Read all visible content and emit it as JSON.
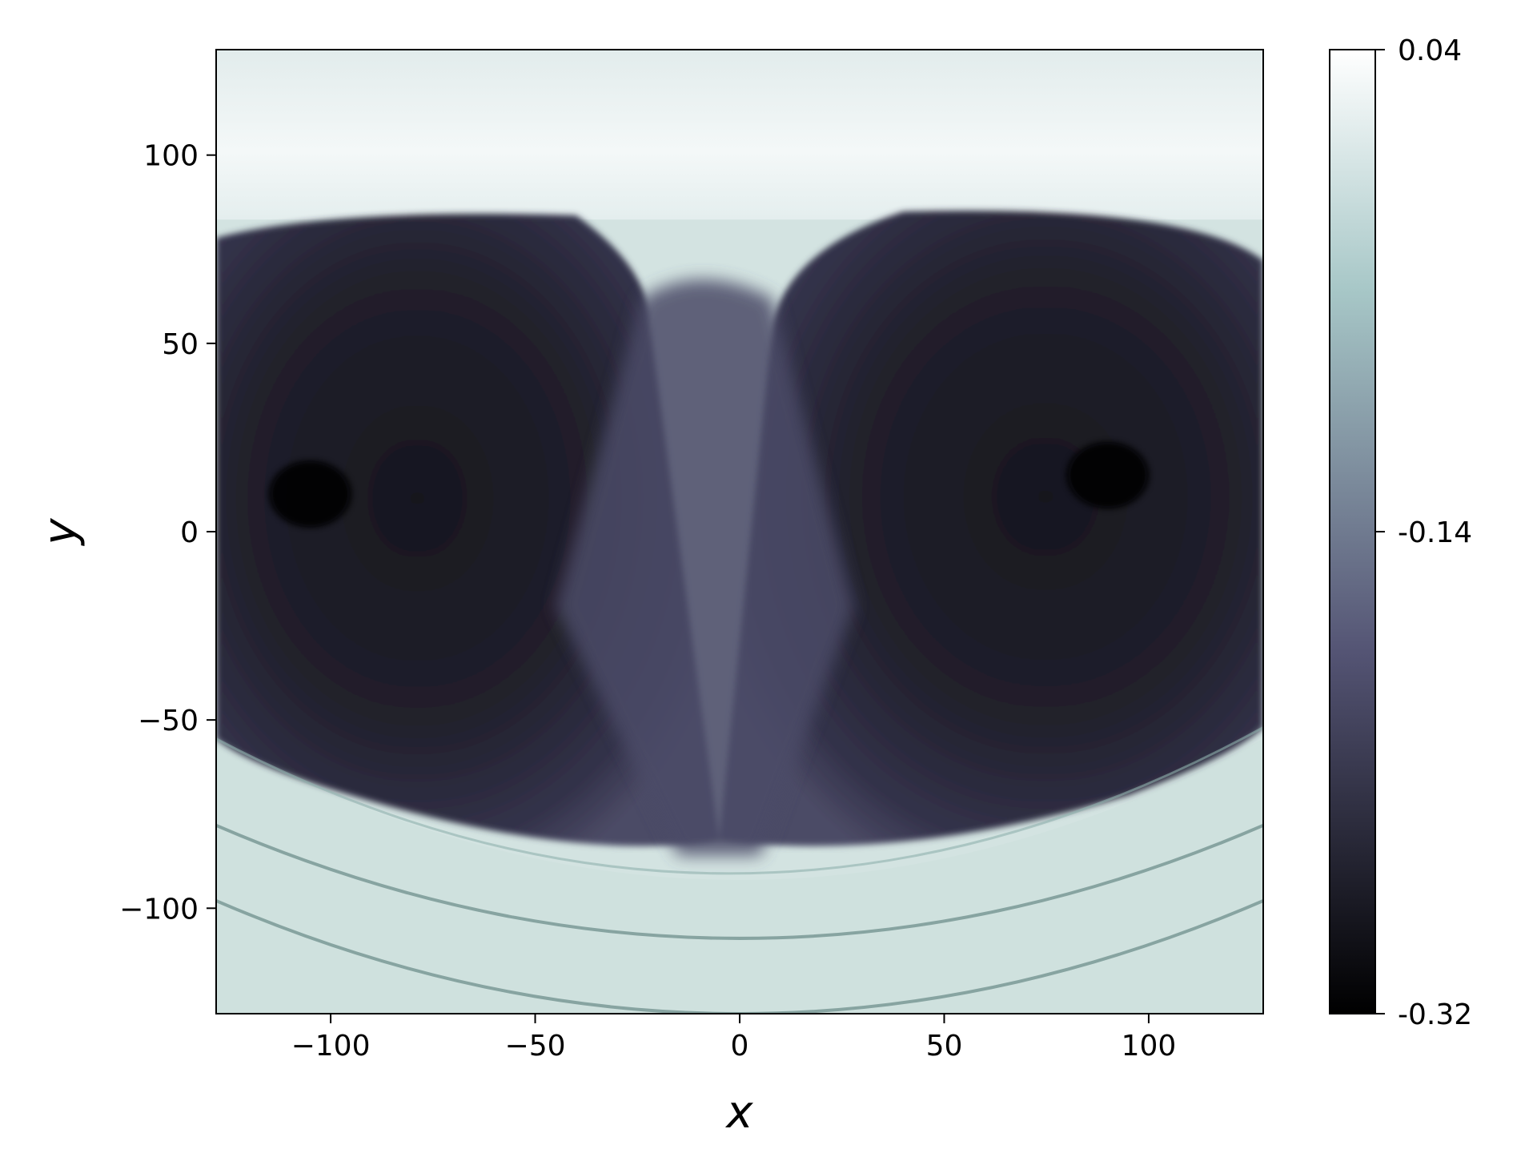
{
  "chart_data": {
    "type": "heatmap",
    "title": "",
    "xlabel": "x",
    "ylabel": "y",
    "xlim": [
      -128,
      128
    ],
    "ylim": [
      -128,
      128
    ],
    "xticks": [
      -100,
      -50,
      0,
      50,
      100
    ],
    "xtick_labels": [
      "−100",
      "−50",
      "0",
      "50",
      "100"
    ],
    "yticks": [
      100,
      50,
      0,
      -50,
      -100
    ],
    "ytick_labels": [
      "100",
      "50",
      "0",
      "−50",
      "−100"
    ],
    "colormap": "bone",
    "colorbar": {
      "vmin": -0.32,
      "vmax": 0.04,
      "ticks": [
        0.04,
        -0.14,
        -0.32
      ],
      "tick_labels": [
        "0.04",
        "-0.14",
        "-0.32"
      ]
    },
    "grid": false,
    "legend": "none",
    "field_summary": {
      "background_level": 0.0,
      "central_lobes_level": -0.26,
      "central_seam_level": -0.2,
      "dark_spots": [
        {
          "x": -105,
          "y": 10,
          "level": -0.32
        },
        {
          "x": 90,
          "y": 15,
          "level": -0.32
        }
      ],
      "lobe_extent_x": [
        -128,
        128
      ],
      "lobe_extent_y": [
        -88,
        85
      ],
      "arc_fronts_y_at_center": [
        -108,
        -128
      ]
    }
  }
}
